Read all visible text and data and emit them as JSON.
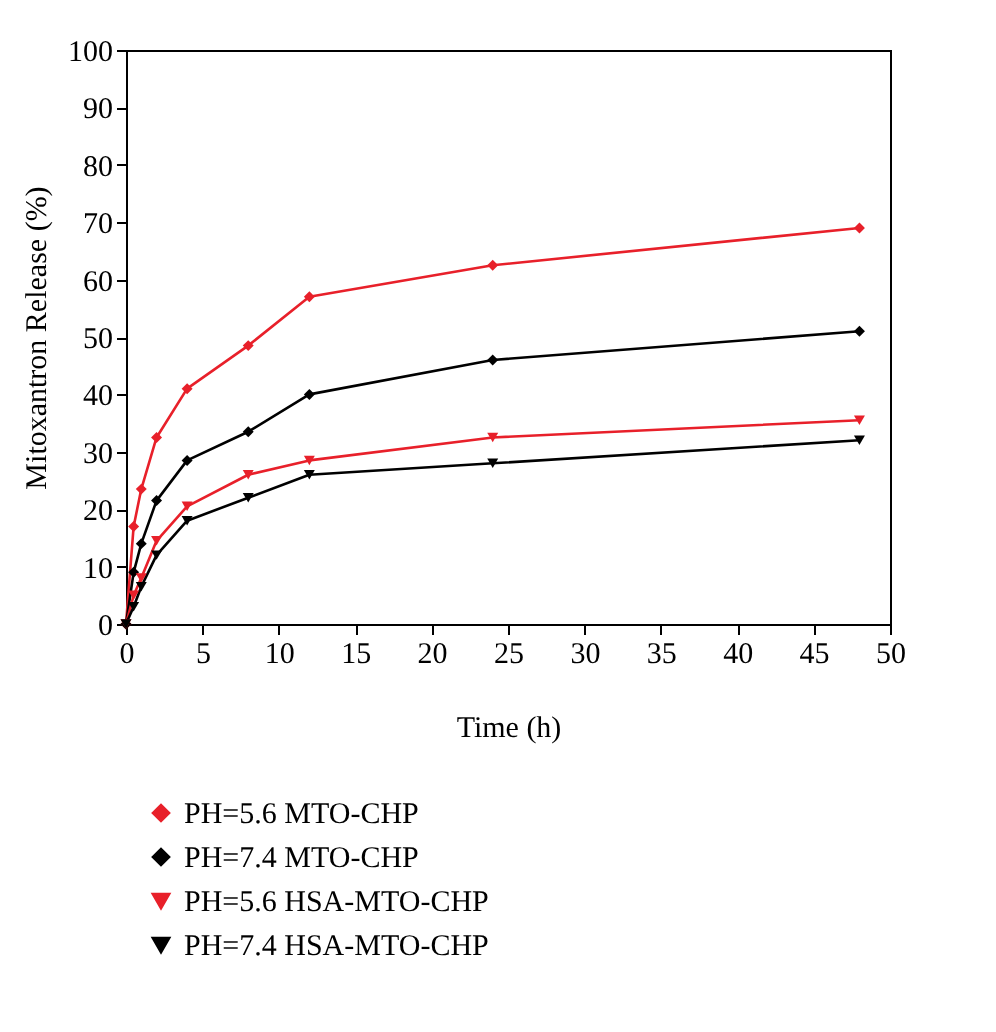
{
  "chart_data": {
    "type": "line",
    "xlabel": "Time (h)",
    "ylabel": "Mitoxantron Release (%)",
    "x": [
      0,
      0.5,
      1,
      2,
      4,
      8,
      12,
      24,
      48
    ],
    "xlim": [
      0,
      50
    ],
    "xticks": [
      0,
      5,
      10,
      15,
      20,
      25,
      30,
      35,
      40,
      45,
      50
    ],
    "ylim": [
      0,
      100
    ],
    "yticks": [
      0,
      10,
      20,
      30,
      40,
      50,
      60,
      70,
      80,
      90,
      100
    ],
    "grid": false,
    "legend": "bottom",
    "line_style": "solid",
    "series": [
      {
        "name": "PH=5.6 MTO-CHP",
        "color": "#e8202a",
        "marker": "diamond",
        "values": [
          0,
          17,
          23.5,
          32.5,
          41,
          48.5,
          57,
          62.5,
          69
        ]
      },
      {
        "name": "PH=7.4 MTO-CHP",
        "color": "#000000",
        "marker": "diamond",
        "values": [
          0,
          9,
          14,
          21.5,
          28.5,
          33.5,
          40,
          46,
          51
        ]
      },
      {
        "name": "PH=5.6 HSA-MTO-CHP",
        "color": "#e8202a",
        "marker": "triangle",
        "values": [
          0,
          5,
          8,
          14.5,
          20.5,
          26,
          28.5,
          32.5,
          35.5
        ]
      },
      {
        "name": "PH=7.4 HSA-MTO-CHP",
        "color": "#000000",
        "marker": "triangle",
        "values": [
          0,
          3,
          6.5,
          12,
          18,
          22,
          26,
          28,
          32
        ]
      }
    ]
  }
}
